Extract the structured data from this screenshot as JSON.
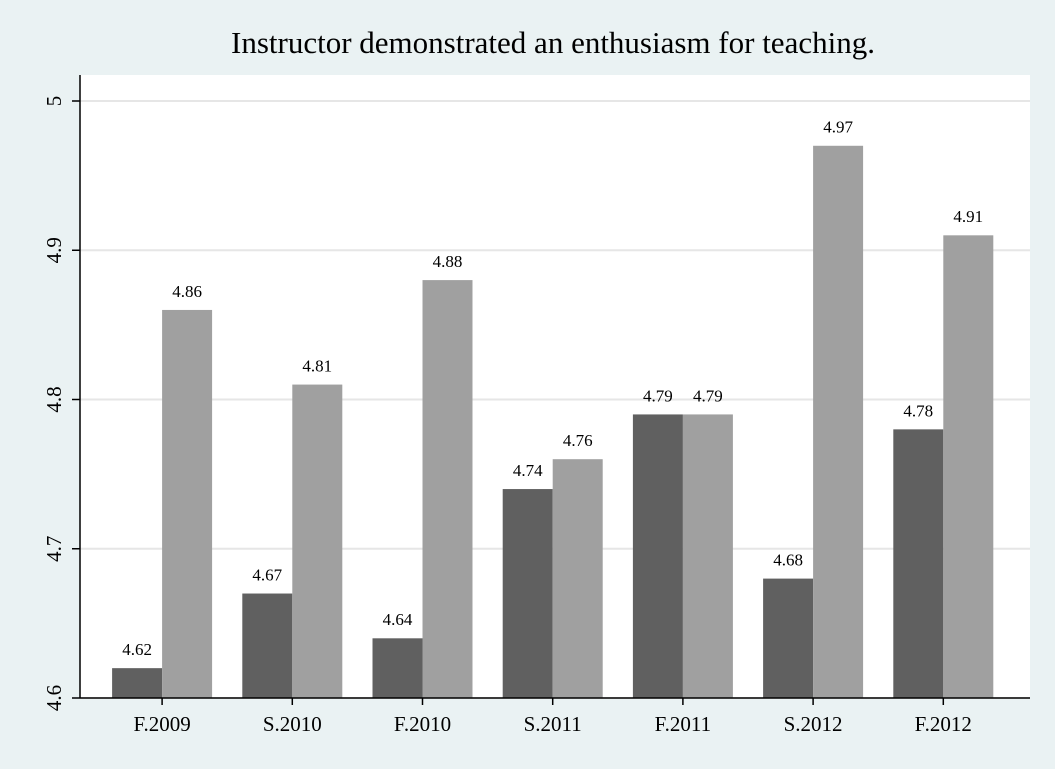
{
  "chart_data": {
    "type": "bar",
    "title": "Instructor demonstrated an enthusiasm for teaching.",
    "categories": [
      "F.2009",
      "S.2010",
      "F.2010",
      "S.2011",
      "F.2011",
      "S.2012",
      "F.2012"
    ],
    "series": [
      {
        "color": "#606060",
        "values": [
          4.62,
          4.67,
          4.64,
          4.74,
          4.79,
          4.68,
          4.78
        ]
      },
      {
        "color": "#a0a0a0",
        "values": [
          4.86,
          4.81,
          4.88,
          4.76,
          4.79,
          4.97,
          4.91
        ]
      }
    ],
    "ylim": [
      4.6,
      5
    ],
    "yticks": [
      4.6,
      4.7,
      4.8,
      4.9,
      5
    ],
    "grid": true
  }
}
